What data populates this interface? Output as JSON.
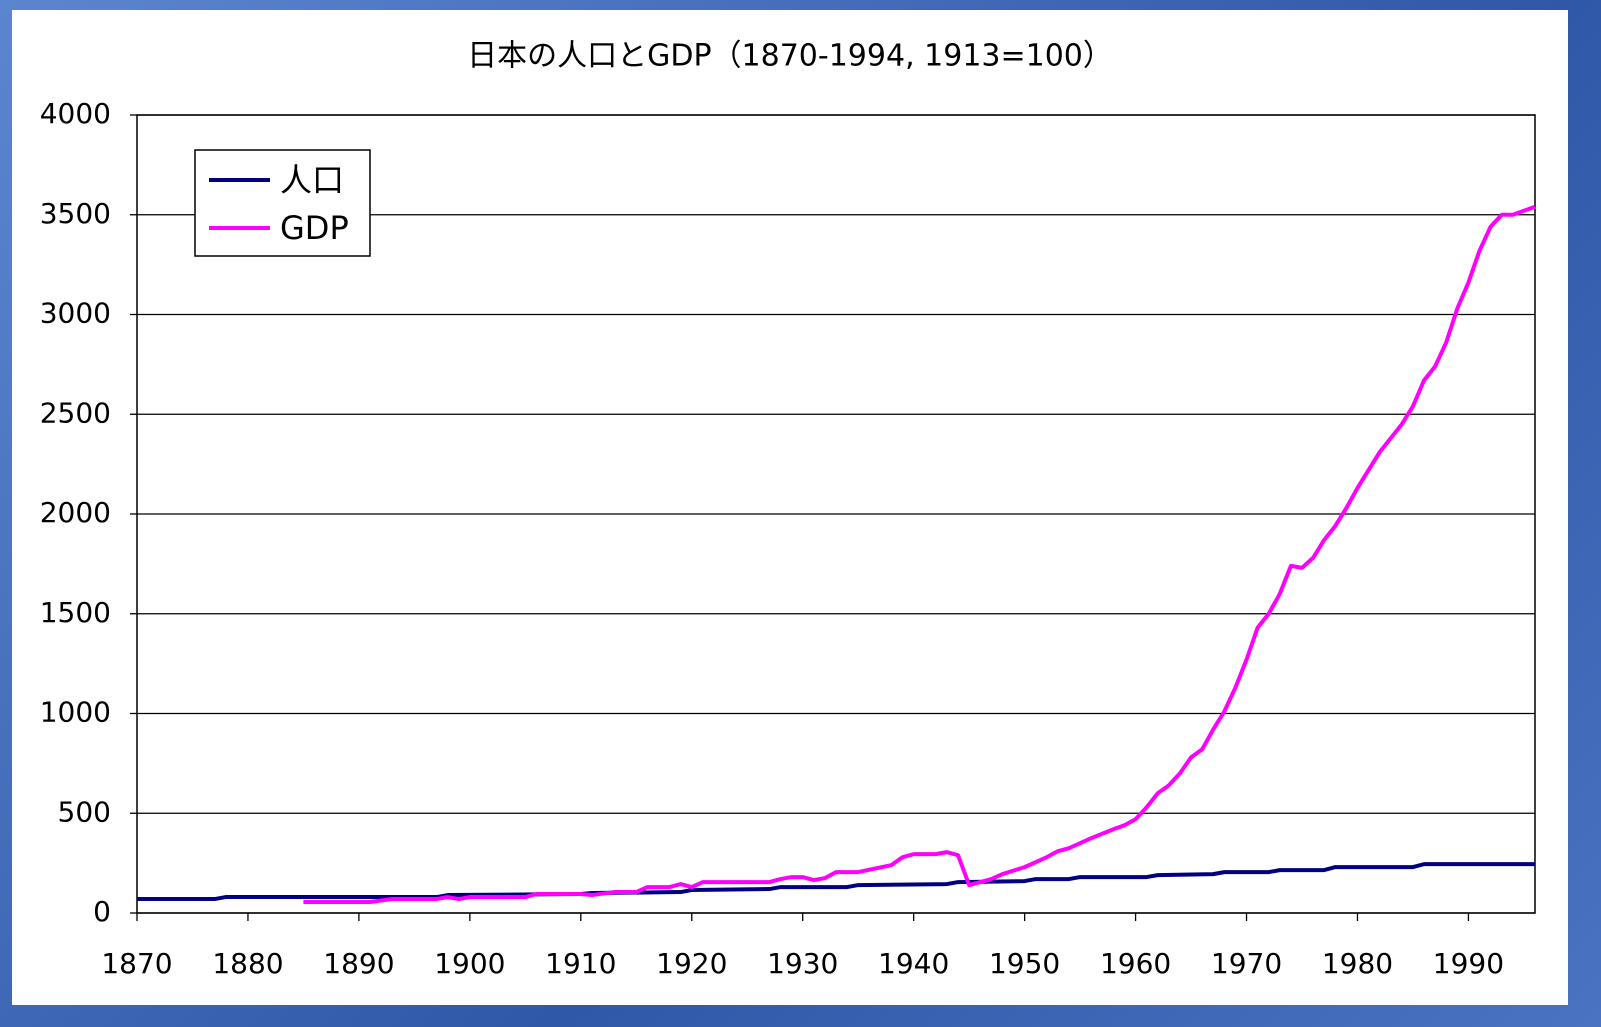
{
  "chart_data": {
    "type": "line",
    "title": "日本の人口とGDP（1870-1994, 1913=100）",
    "xlim": [
      1870,
      1996
    ],
    "xticks": [
      1870,
      1880,
      1890,
      1900,
      1910,
      1920,
      1930,
      1940,
      1950,
      1960,
      1970,
      1980,
      1990
    ],
    "ylim": [
      0,
      4000
    ],
    "yticks": [
      0,
      500,
      1000,
      1500,
      2000,
      2500,
      3000,
      3500,
      4000
    ],
    "grid": true,
    "legend": "upper left",
    "series": [
      {
        "name": "人口",
        "color": "#000080",
        "x": [
          1870,
          1877,
          1878,
          1897,
          1898,
          1910,
          1911,
          1919,
          1920,
          1927,
          1928,
          1934,
          1935,
          1943,
          1944,
          1950,
          1951,
          1954,
          1955,
          1961,
          1962,
          1967,
          1968,
          1972,
          1973,
          1977,
          1978,
          1985,
          1986,
          1996
        ],
        "values": [
          70,
          70,
          80,
          80,
          90,
          95,
          100,
          105,
          115,
          120,
          130,
          130,
          140,
          145,
          155,
          160,
          170,
          170,
          180,
          180,
          190,
          195,
          205,
          205,
          215,
          215,
          230,
          230,
          245,
          245
        ]
      },
      {
        "name": "GDP",
        "color": "#ff00ff",
        "x": [
          1885,
          1891,
          1893,
          1897,
          1898,
          1899,
          1900,
          1905,
          1906,
          1910,
          1911,
          1913,
          1915,
          1916,
          1918,
          1919,
          1920,
          1921,
          1926,
          1927,
          1928,
          1929,
          1930,
          1931,
          1932,
          1933,
          1935,
          1938,
          1939,
          1940,
          1942,
          1943,
          1944,
          1945,
          1946,
          1947,
          1948,
          1950,
          1952,
          1953,
          1954,
          1956,
          1958,
          1959,
          1960,
          1961,
          1962,
          1963,
          1964,
          1965,
          1966,
          1967,
          1968,
          1969,
          1970,
          1971,
          1972,
          1973,
          1974,
          1975,
          1976,
          1977,
          1978,
          1979,
          1980,
          1981,
          1982,
          1983,
          1984,
          1985,
          1986,
          1987,
          1988,
          1989,
          1990,
          1991,
          1992,
          1993,
          1994,
          1995,
          1996
        ],
        "values": [
          55,
          55,
          70,
          70,
          80,
          70,
          80,
          80,
          95,
          95,
          90,
          105,
          105,
          130,
          130,
          145,
          130,
          155,
          155,
          155,
          170,
          180,
          180,
          165,
          175,
          205,
          205,
          240,
          280,
          295,
          295,
          305,
          290,
          140,
          155,
          170,
          195,
          230,
          280,
          310,
          325,
          375,
          420,
          440,
          470,
          530,
          600,
          640,
          700,
          780,
          820,
          920,
          1010,
          1130,
          1270,
          1430,
          1500,
          1600,
          1740,
          1730,
          1780,
          1870,
          1940,
          2030,
          2130,
          2220,
          2310,
          2380,
          2450,
          2540,
          2670,
          2740,
          2860,
          3030,
          3160,
          3320,
          3440,
          3500,
          3500,
          3520,
          3540
        ]
      }
    ]
  }
}
